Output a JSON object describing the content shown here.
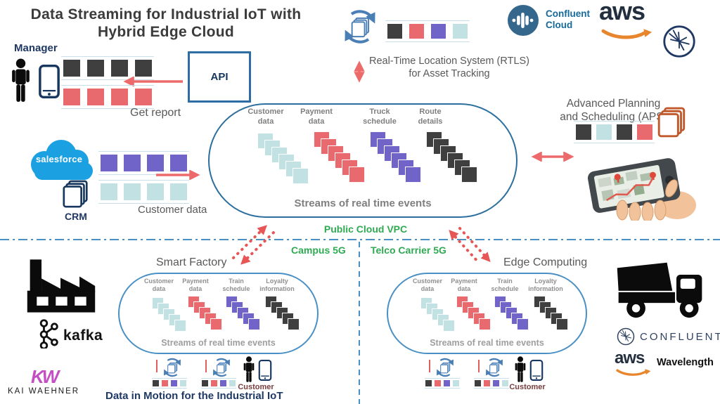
{
  "colors": {
    "dark": "#3f3f3f",
    "red": "#e8696e",
    "purple": "#7064c8",
    "teal": "#c2e1e3",
    "stadium_blue": "#2c6f9e",
    "small_stadium_blue": "#4a90c4",
    "rail_blue": "#c9dfec",
    "green": "#2faa52",
    "navy": "#1f3864",
    "arrow_red": "#ed6a6a",
    "dotted_red": "#e85555",
    "salesforce_blue": "#1ba0e1",
    "aws_orange": "#e8862d"
  },
  "title": "Data Streaming for Industrial IoT with Hybrid Edge Cloud",
  "manager": {
    "label": "Manager",
    "action": "Get report"
  },
  "api": {
    "label": "API"
  },
  "rtls": {
    "caption": "Real-Time Location System (RTLS)\nfor Asset Tracking"
  },
  "crm": {
    "brand": "salesforce",
    "label": "CRM",
    "stream_label": "Customer data"
  },
  "aps": {
    "caption": "Advanced Planning\nand Scheduling (APS)"
  },
  "cloud_stadium": {
    "columns": [
      {
        "label": "Customer\ndata"
      },
      {
        "label": "Payment\ndata"
      },
      {
        "label": "Truck\nschedule"
      },
      {
        "label": "Route\ndetails"
      }
    ],
    "footer": "Streams of real time events"
  },
  "zones": {
    "public_cloud": "Public Cloud VPC",
    "campus": "Campus 5G",
    "telco": "Telco Carrier 5G"
  },
  "smart_factory": {
    "title": "Smart Factory",
    "columns": [
      {
        "label": "Customer\ndata"
      },
      {
        "label": "Payment\ndata"
      },
      {
        "label": "Train\nschedule"
      },
      {
        "label": "Loyalty\ninformation"
      }
    ],
    "footer": "Streams of real time events",
    "customer": "Customer"
  },
  "edge": {
    "title": "Edge Computing",
    "columns": [
      {
        "label": "Customer\ndata"
      },
      {
        "label": "Payment\ndata"
      },
      {
        "label": "Train\nschedule"
      },
      {
        "label": "Loyalty\ninformation"
      }
    ],
    "footer": "Streams of real time events",
    "customer": "Customer"
  },
  "branding": {
    "confluent_cloud": "Confluent\nCloud",
    "aws": "aws",
    "confluent": "CONFLUENT",
    "wavelength": "Wavelength",
    "kafka": "kafka",
    "kw": "KW",
    "kai_waehner": "KAI WAEHNER"
  },
  "footer": {
    "tagline": "Data in Motion for the Industrial IoT"
  }
}
